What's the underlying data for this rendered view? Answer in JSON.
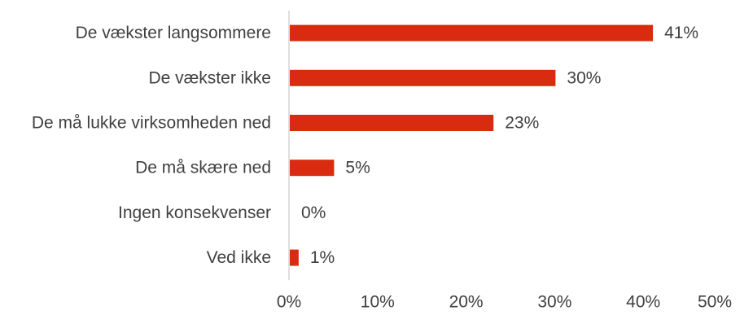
{
  "chart_data": {
    "type": "bar",
    "orientation": "horizontal",
    "categories": [
      "De vækster langsommere",
      "De vækster ikke",
      "De må lukke virksomheden ned",
      "De må skære ned",
      "Ingen konsekvenser",
      "Ved ikke"
    ],
    "values": [
      41,
      30,
      23,
      5,
      0,
      1
    ],
    "value_labels": [
      "41%",
      "30%",
      "23%",
      "5%",
      "0%",
      "1%"
    ],
    "xlim": [
      0,
      50
    ],
    "xticks": [
      0,
      10,
      20,
      30,
      40,
      50
    ],
    "xtick_labels": [
      "0%",
      "10%",
      "20%",
      "30%",
      "40%",
      "50%"
    ],
    "grid": false,
    "bar_color": "#d92b10",
    "title": "",
    "xlabel": "",
    "ylabel": ""
  }
}
